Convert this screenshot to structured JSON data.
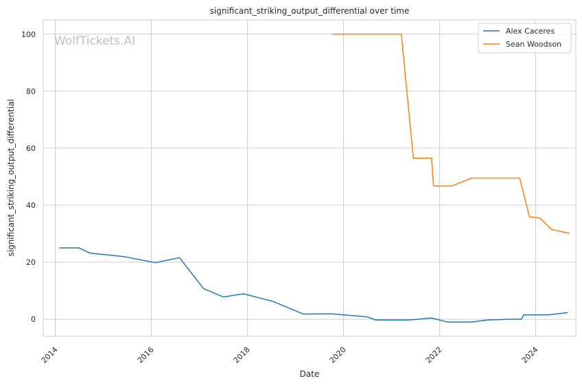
{
  "chart_data": {
    "type": "line",
    "title": "significant_striking_output_differential over time",
    "xlabel": "Date",
    "ylabel": "significant_striking_output_differential",
    "watermark": "WolfTickets.AI",
    "x_ticks": [
      "2014",
      "2016",
      "2018",
      "2020",
      "2022",
      "2024"
    ],
    "y_ticks": [
      "0",
      "20",
      "40",
      "60",
      "80",
      "100"
    ],
    "xlim": [
      "2013-10-01",
      "2024-11-01"
    ],
    "ylim": [
      -6,
      105
    ],
    "grid": true,
    "legend_position": "top-right",
    "series": [
      {
        "name": "Alex Caceres",
        "color": "#1f77b4",
        "points": [
          [
            "2014-02-01",
            25.0
          ],
          [
            "2014-07-01",
            25.0
          ],
          [
            "2014-09-20",
            23.2
          ],
          [
            "2015-06-01",
            22.0
          ],
          [
            "2016-02-01",
            19.8
          ],
          [
            "2016-08-01",
            21.6
          ],
          [
            "2017-02-01",
            10.7
          ],
          [
            "2017-07-01",
            7.8
          ],
          [
            "2017-12-01",
            8.9
          ],
          [
            "2018-07-15",
            6.2
          ],
          [
            "2019-03-01",
            1.8
          ],
          [
            "2019-10-01",
            1.9
          ],
          [
            "2020-07-01",
            0.8
          ],
          [
            "2020-09-01",
            -0.3
          ],
          [
            "2021-05-15",
            -0.3
          ],
          [
            "2021-11-01",
            0.4
          ],
          [
            "2022-03-01",
            -1.0
          ],
          [
            "2022-09-01",
            -1.0
          ],
          [
            "2023-01-01",
            -0.3
          ],
          [
            "2023-07-01",
            0.0
          ],
          [
            "2023-09-15",
            0.0
          ],
          [
            "2023-10-01",
            1.5
          ],
          [
            "2024-04-01",
            1.5
          ],
          [
            "2024-09-01",
            2.3
          ]
        ]
      },
      {
        "name": "Sean Woodson",
        "color": "#ff7f0e",
        "points": [
          [
            "2019-10-05",
            100.0
          ],
          [
            "2021-03-15",
            100.0
          ],
          [
            "2021-06-15",
            56.5
          ],
          [
            "2021-11-01",
            56.5
          ],
          [
            "2021-11-15",
            46.7
          ],
          [
            "2022-04-01",
            46.7
          ],
          [
            "2022-09-01",
            49.5
          ],
          [
            "2023-09-01",
            49.5
          ],
          [
            "2023-11-15",
            35.9
          ],
          [
            "2024-02-01",
            35.5
          ],
          [
            "2024-05-01",
            31.5
          ],
          [
            "2024-09-15",
            30.1
          ]
        ]
      }
    ]
  }
}
